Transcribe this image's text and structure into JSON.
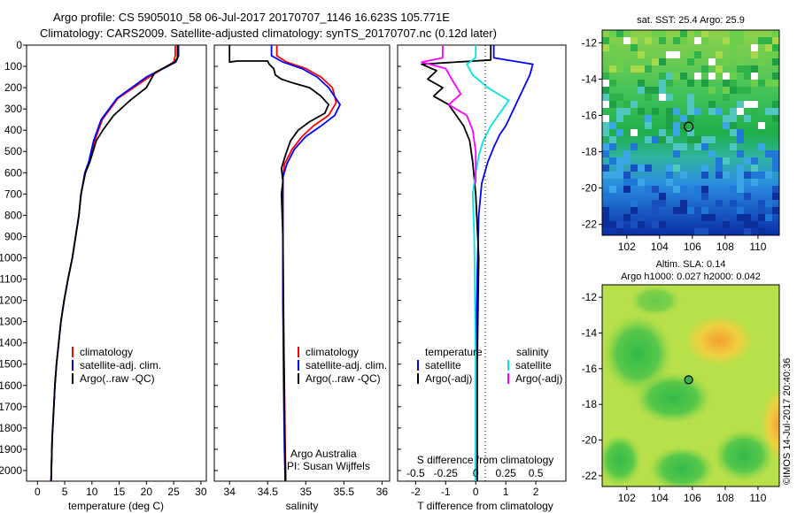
{
  "header": {
    "line1": "Argo profile: CS 5905010_58 06-Jul-2017 20170707_1146 16.623S 105.771E",
    "line2": "Climatology: CARS2009. Satellite-adjusted climatology: synTS_20170707.nc (0.12d later)"
  },
  "colors": {
    "climatology": "#ff0000",
    "satellite": "#0000ff",
    "argo": "#000000",
    "salinity_satellite": "#00e5e5",
    "salinity_argo": "#ff00ff"
  },
  "chart_data": [
    {
      "type": "line",
      "id": "temperature",
      "xlabel": "temperature (deg C)",
      "xlim": [
        -2,
        31
      ],
      "xticks": [
        0,
        5,
        10,
        15,
        20,
        25,
        30
      ],
      "ylim": [
        2050,
        0
      ],
      "yticks": [
        0,
        100,
        200,
        300,
        400,
        500,
        600,
        700,
        800,
        900,
        1000,
        1100,
        1200,
        1300,
        1400,
        1500,
        1600,
        1700,
        1800,
        1900,
        2000
      ],
      "legend": [
        "climatology",
        "satellite-adj. clim.",
        "Argo(..raw -QC)"
      ],
      "series": [
        {
          "name": "climatology",
          "color": "#ff0000",
          "x": [
            25.3,
            25.3,
            25.0,
            20.5,
            14.8,
            11.9,
            10.5,
            9.5,
            8.8,
            8.0,
            7.6,
            7.0,
            6.4,
            5.6,
            4.9,
            4.3,
            3.9,
            3.5,
            3.2,
            3.0,
            2.7,
            2.5
          ],
          "y": [
            0,
            50,
            80,
            150,
            250,
            350,
            450,
            550,
            600,
            700,
            800,
            900,
            1000,
            1100,
            1200,
            1300,
            1400,
            1500,
            1600,
            1700,
            1850,
            2050
          ]
        },
        {
          "name": "satellite-adj. clim.",
          "color": "#0000ff",
          "x": [
            25.9,
            25.9,
            25.4,
            20.0,
            14.6,
            11.7,
            10.3,
            9.4,
            8.7,
            8.0,
            7.6,
            7.0,
            6.4,
            5.6,
            4.9,
            4.3,
            3.9,
            3.5,
            3.2,
            3.0,
            2.7,
            2.5
          ],
          "y": [
            0,
            50,
            80,
            150,
            250,
            350,
            450,
            550,
            600,
            700,
            800,
            900,
            1000,
            1100,
            1200,
            1300,
            1400,
            1500,
            1600,
            1700,
            1850,
            2050
          ]
        },
        {
          "name": "Argo(..raw -QC)",
          "color": "#000000",
          "x": [
            25.7,
            25.7,
            25.2,
            21.5,
            20.0,
            17.0,
            14.0,
            12.0,
            10.8,
            9.6,
            8.8,
            8.0,
            7.6,
            7.0,
            6.4,
            5.6,
            4.9,
            4.3,
            3.9,
            3.5,
            3.2,
            3.0,
            2.7,
            2.5
          ],
          "y": [
            0,
            60,
            80,
            130,
            200,
            260,
            330,
            400,
            450,
            550,
            600,
            700,
            800,
            900,
            1000,
            1100,
            1200,
            1300,
            1400,
            1500,
            1600,
            1700,
            1850,
            2050
          ]
        }
      ]
    },
    {
      "type": "line",
      "id": "salinity",
      "xlabel": "salinity",
      "xlim": [
        33.8,
        36.1
      ],
      "xticks": [
        34,
        34.5,
        35,
        35.5,
        36
      ],
      "ylim": [
        2050,
        0
      ],
      "legend": [
        "climatology",
        "satellite-adj. clim.",
        "Argo(..raw -QC)"
      ],
      "annotations": [
        "Argo Australia",
        "PI: Susan Wijffels"
      ],
      "series": [
        {
          "name": "climatology",
          "color": "#ff0000",
          "x": [
            34.62,
            34.62,
            34.75,
            35.0,
            35.2,
            35.35,
            35.4,
            35.3,
            35.1,
            34.95,
            34.82,
            34.72,
            34.7,
            34.7,
            34.7,
            34.7,
            34.72,
            34.73,
            34.74
          ],
          "y": [
            0,
            50,
            80,
            110,
            150,
            200,
            270,
            330,
            380,
            430,
            490,
            560,
            620,
            700,
            900,
            1200,
            1600,
            1900,
            2050
          ]
        },
        {
          "name": "satellite-adj. clim.",
          "color": "#0000ff",
          "x": [
            34.55,
            34.55,
            34.7,
            34.95,
            35.15,
            35.3,
            35.45,
            35.38,
            35.2,
            35.0,
            34.85,
            34.75,
            34.7,
            34.7,
            34.7,
            34.7,
            34.71,
            34.72,
            34.73
          ],
          "y": [
            0,
            50,
            80,
            110,
            150,
            200,
            280,
            330,
            380,
            430,
            490,
            560,
            620,
            700,
            900,
            1200,
            1600,
            1900,
            2050
          ]
        },
        {
          "name": "Argo(..raw -QC)",
          "color": "#000000",
          "x": [
            34.0,
            34.0,
            34.1,
            34.5,
            34.52,
            34.58,
            34.6,
            34.68,
            34.85,
            35.05,
            35.2,
            35.3,
            35.25,
            35.05,
            34.9,
            34.8,
            34.73,
            34.68,
            34.7,
            34.68,
            34.7,
            34.71,
            34.72,
            34.73
          ],
          "y": [
            0,
            80,
            75,
            75,
            90,
            110,
            140,
            160,
            180,
            200,
            240,
            280,
            320,
            360,
            400,
            450,
            520,
            580,
            640,
            700,
            900,
            1300,
            1700,
            2050
          ]
        }
      ]
    },
    {
      "type": "line",
      "id": "difference",
      "xlabel_top": "S difference from climatology",
      "xticks_top": [
        "-0.5",
        "-0.25",
        "0",
        "0.25",
        "0.5"
      ],
      "xlabel": "T difference from climatology",
      "xlim": [
        -2.6,
        3.0
      ],
      "xticks": [
        -2,
        -1,
        0,
        1,
        2
      ],
      "ylim": [
        2050,
        0
      ],
      "legend": {
        "temperature": [
          "satellite",
          "Argo(-adj)"
        ],
        "salinity": [
          "satellite",
          "Argo(-adj)"
        ]
      },
      "series": [
        {
          "name": "temperature satellite",
          "color": "#0000ff",
          "x": [
            0.6,
            0.6,
            1.9,
            1.8,
            1.6,
            1.4,
            1.2,
            1.0,
            0.8,
            0.6,
            0.4,
            0.2,
            0.1,
            0.05,
            0.0,
            0.0
          ],
          "y": [
            0,
            60,
            90,
            140,
            200,
            260,
            320,
            380,
            420,
            480,
            550,
            650,
            800,
            1100,
            1500,
            2050
          ]
        },
        {
          "name": "temperature Argo(-adj)",
          "color": "#000000",
          "x": [
            0.5,
            0.5,
            -1.8,
            -1.3,
            -1.6,
            -1.1,
            -1.4,
            -0.9,
            -0.7,
            -0.4,
            -0.2,
            -0.1,
            0.0,
            0.1,
            0.05,
            0.05
          ],
          "y": [
            0,
            70,
            90,
            120,
            160,
            200,
            240,
            280,
            320,
            380,
            450,
            550,
            700,
            1000,
            1500,
            2050
          ]
        },
        {
          "name": "salinity satellite",
          "color": "#00e5e5",
          "x": [
            0.0,
            0.0,
            -0.3,
            -0.1,
            0.4,
            1.1,
            0.8,
            0.5,
            0.25,
            0.1,
            0.0,
            -0.1,
            -0.05,
            0.0,
            0.0
          ],
          "y": [
            0,
            60,
            90,
            140,
            200,
            260,
            320,
            380,
            450,
            520,
            600,
            700,
            900,
            1500,
            2050
          ]
        },
        {
          "name": "salinity Argo(-adj)",
          "color": "#ff00ff",
          "x": [
            -1.1,
            -1.1,
            -1.8,
            -1.0,
            -0.8,
            -0.5,
            -0.9,
            -0.3,
            -0.1,
            0.0,
            0.0
          ],
          "y": [
            0,
            60,
            80,
            110,
            160,
            230,
            280,
            330,
            400,
            500,
            650
          ]
        }
      ]
    },
    {
      "type": "heatmap",
      "id": "sst-map",
      "title": "sat. SST: 25.4 Argo: 25.9",
      "xlim": [
        100.5,
        111.3
      ],
      "ylim": [
        -22.6,
        -11.3
      ],
      "xticks": [
        102,
        104,
        106,
        108,
        110
      ],
      "yticks": [
        -12,
        -14,
        -16,
        -18,
        -20,
        -22
      ],
      "argo_position": [
        105.771,
        -16.623
      ]
    },
    {
      "type": "heatmap",
      "id": "sla-map",
      "title": "Altim. SLA: 0.14",
      "subtitle": "Argo h1000: 0.027 h2000: 0.042",
      "xlim": [
        100.5,
        111.3
      ],
      "ylim": [
        -22.6,
        -11.3
      ],
      "xticks": [
        102,
        104,
        106,
        108,
        110
      ],
      "yticks": [
        -12,
        -14,
        -16,
        -18,
        -20,
        -22
      ],
      "argo_position": [
        105.771,
        -16.623
      ]
    }
  ],
  "footer": {
    "credit": "©IMOS 14-Jul-2017 20:40:36"
  }
}
